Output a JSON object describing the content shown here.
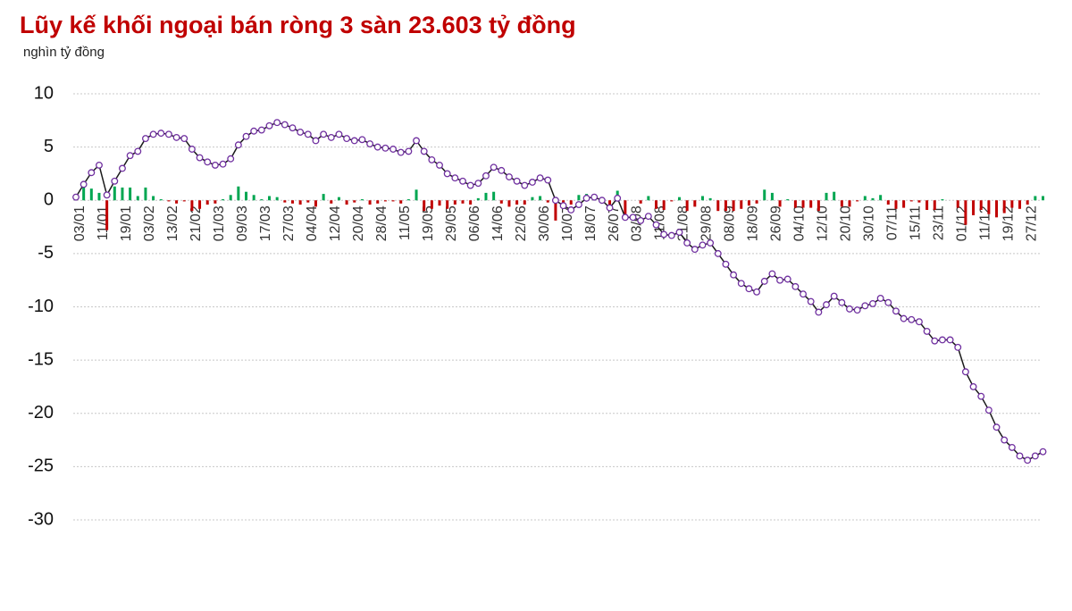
{
  "chart_data": {
    "type": "line",
    "title": "Lũy kế khối ngoại bán ròng 3 sàn 23.603 tỷ đồng",
    "subtitle": "nghìn tỷ đồng",
    "categories": [
      "03/01",
      null,
      null,
      "11/01",
      null,
      null,
      "19/01",
      null,
      null,
      "03/02",
      null,
      null,
      "13/02",
      null,
      null,
      "21/02",
      null,
      null,
      "01/03",
      null,
      null,
      "09/03",
      null,
      null,
      "17/03",
      null,
      null,
      "27/03",
      null,
      null,
      "04/04",
      null,
      null,
      "12/04",
      null,
      null,
      "20/04",
      null,
      null,
      "28/04",
      null,
      null,
      "11/05",
      null,
      null,
      "19/05",
      null,
      null,
      "29/05",
      null,
      null,
      "06/06",
      null,
      null,
      "14/06",
      null,
      null,
      "22/06",
      null,
      null,
      "30/06",
      null,
      null,
      "10/07",
      null,
      null,
      "18/07",
      null,
      null,
      "26/07",
      null,
      null,
      "03/08",
      null,
      null,
      "11/08",
      null,
      null,
      "21/08",
      null,
      null,
      "29/08",
      null,
      null,
      "08/09",
      null,
      null,
      "18/09",
      null,
      null,
      "26/09",
      null,
      null,
      "04/10",
      null,
      null,
      "12/10",
      null,
      null,
      "20/10",
      null,
      null,
      "30/10",
      null,
      null,
      "07/11",
      null,
      null,
      "15/11",
      null,
      null,
      "23/11",
      null,
      null,
      "01/12",
      null,
      null,
      "11/12",
      null,
      null,
      "19/12",
      null,
      null,
      "27/12",
      null,
      null
    ],
    "series": [
      {
        "type": "bar",
        "color": "#00a651",
        "negative_color": "#c00000",
        "values": [
          0.3,
          1.2,
          1.1,
          0.7,
          -2.8,
          1.3,
          1.2,
          1.2,
          0.4,
          1.2,
          0.4,
          0.1,
          -0.1,
          -0.3,
          -0.1,
          -1.0,
          -0.8,
          -0.4,
          -0.3,
          0.1,
          0.5,
          1.3,
          0.8,
          0.5,
          0.1,
          0.4,
          0.3,
          -0.2,
          -0.3,
          -0.4,
          -0.2,
          -0.6,
          0.6,
          -0.3,
          0.3,
          -0.4,
          -0.2,
          0.1,
          -0.4,
          -0.3,
          -0.1,
          -0.1,
          -0.3,
          0.1,
          1.0,
          -1.0,
          -0.8,
          -0.5,
          -0.8,
          -0.4,
          -0.3,
          -0.4,
          0.2,
          0.7,
          0.8,
          -0.3,
          -0.6,
          -0.4,
          -0.4,
          0.3,
          0.4,
          -0.2,
          -1.9,
          -0.5,
          -0.4,
          0.5,
          0.6,
          0.1,
          -0.3,
          -0.7,
          0.9,
          -1.8,
          0.0,
          -0.3,
          0.4,
          -0.8,
          -0.9,
          -0.1,
          0.3,
          -1.0,
          -0.6,
          0.4,
          0.2,
          -1.0,
          -1.0,
          -1.0,
          -0.8,
          -0.5,
          -0.3,
          1.0,
          0.7,
          -0.6,
          0.1,
          -0.7,
          -0.7,
          -0.7,
          -1.0,
          0.7,
          0.8,
          -0.6,
          -0.6,
          -0.1,
          0.4,
          0.2,
          0.5,
          -0.4,
          -0.8,
          -0.7,
          -0.1,
          -0.2,
          -0.9,
          -0.9,
          0.1,
          0.0,
          -0.7,
          -2.3,
          -1.4,
          -0.9,
          -1.3,
          -1.6,
          -1.2,
          -0.7,
          -0.8,
          -0.4,
          0.4,
          0.4
        ]
      },
      {
        "type": "line",
        "color": "#1a1a1a",
        "marker_color": "#7030a0",
        "values": [
          0.3,
          1.5,
          2.6,
          3.3,
          0.5,
          1.8,
          3.0,
          4.2,
          4.6,
          5.8,
          6.2,
          6.3,
          6.2,
          5.9,
          5.8,
          4.8,
          4.0,
          3.6,
          3.3,
          3.4,
          3.9,
          5.2,
          6.0,
          6.5,
          6.6,
          7.0,
          7.3,
          7.1,
          6.8,
          6.4,
          6.2,
          5.6,
          6.2,
          5.9,
          6.2,
          5.8,
          5.6,
          5.7,
          5.3,
          5.0,
          4.9,
          4.8,
          4.5,
          4.6,
          5.6,
          4.6,
          3.8,
          3.3,
          2.5,
          2.1,
          1.8,
          1.4,
          1.6,
          2.3,
          3.1,
          2.8,
          2.2,
          1.8,
          1.4,
          1.7,
          2.1,
          1.9,
          0.0,
          -0.5,
          -0.9,
          -0.4,
          0.2,
          0.3,
          0.0,
          -0.7,
          0.2,
          -1.6,
          -1.6,
          -1.9,
          -1.5,
          -2.3,
          -3.2,
          -3.3,
          -3.0,
          -4.0,
          -4.6,
          -4.2,
          -4.0,
          -5.0,
          -6.0,
          -7.0,
          -7.8,
          -8.3,
          -8.6,
          -7.6,
          -6.9,
          -7.5,
          -7.4,
          -8.1,
          -8.8,
          -9.5,
          -10.5,
          -9.8,
          -9.0,
          -9.6,
          -10.2,
          -10.3,
          -9.9,
          -9.7,
          -9.2,
          -9.6,
          -10.4,
          -11.1,
          -11.2,
          -11.4,
          -12.3,
          -13.2,
          -13.1,
          -13.1,
          -13.8,
          -16.1,
          -17.5,
          -18.4,
          -19.7,
          -21.3,
          -22.5,
          -23.2,
          -24.0,
          -24.4,
          -24.0,
          -23.6
        ]
      }
    ],
    "ylim": [
      -30,
      10
    ],
    "yticks": [
      -30,
      -25,
      -20,
      -15,
      -10,
      -5,
      0,
      5,
      10
    ],
    "grid": true
  }
}
